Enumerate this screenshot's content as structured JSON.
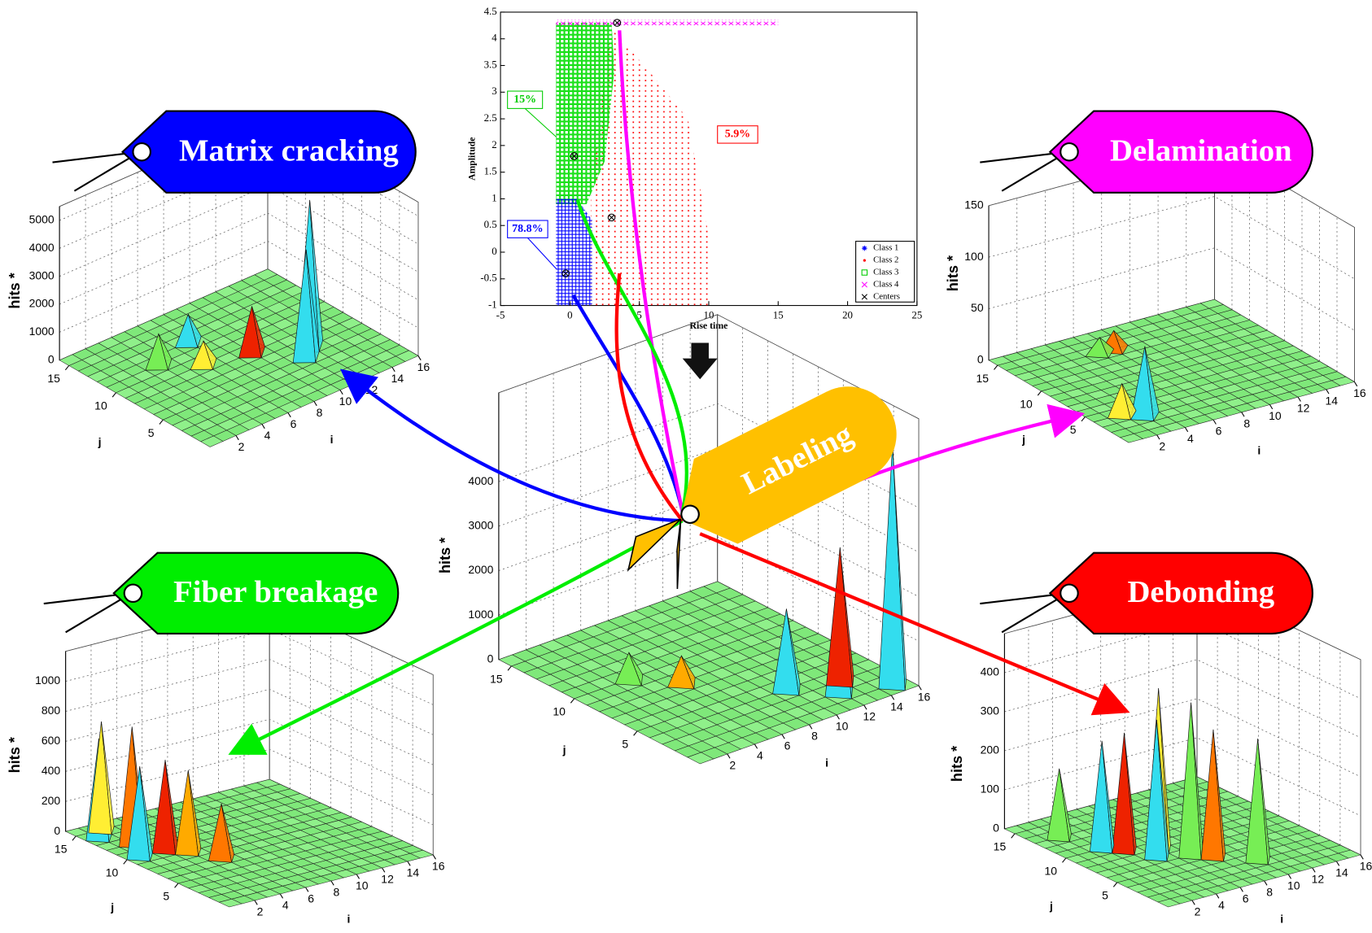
{
  "chart_data": [
    {
      "type": "scatter",
      "xlabel": "Rise time",
      "ylabel": "Amplitude",
      "xlim": [
        -5,
        25
      ],
      "xticks": [
        -5,
        0,
        5,
        10,
        15,
        20,
        25
      ],
      "ylim": [
        -1,
        4.5
      ],
      "yticks": [
        -1,
        -0.5,
        0,
        0.5,
        1,
        1.5,
        2,
        2.5,
        3,
        3.5,
        4,
        4.5
      ],
      "legend": [
        {
          "name": "Class 1",
          "color": "#0000ff",
          "marker": "*"
        },
        {
          "name": "Class 2",
          "color": "#ff0000",
          "marker": "."
        },
        {
          "name": "Class 3",
          "color": "#00cc00",
          "marker": "square"
        },
        {
          "name": "Class 4",
          "color": "#ff00ff",
          "marker": "x"
        },
        {
          "name": "Centers",
          "color": "#000000",
          "marker": "x"
        }
      ],
      "centers": {
        "x": [
          -0.3,
          3,
          0.3,
          3.4
        ],
        "y": [
          -0.4,
          0.65,
          1.8,
          4.3
        ]
      },
      "annotations": [
        {
          "text": "15%",
          "color": "#00cc00"
        },
        {
          "text": "5.9%",
          "color": "#ff0000"
        },
        {
          "text": "78.8%",
          "color": "#0000ff"
        }
      ]
    },
    {
      "type": "surface3d",
      "title": "Matrix cracking",
      "color": "#0000ff",
      "zlabel": "hits *",
      "xlabel": "i",
      "ylabel": "j",
      "zlim": [
        0,
        5500
      ],
      "zticks": [
        0,
        1000,
        2000,
        3000,
        4000,
        5000
      ],
      "xticks": [
        2,
        4,
        6,
        8,
        10,
        12,
        14,
        16
      ],
      "yticks": [
        5,
        10,
        15
      ]
    },
    {
      "type": "surface3d",
      "title": "Delamination",
      "color": "#ff00ff",
      "zlabel": "hits *",
      "xlabel": "i",
      "ylabel": "j",
      "zlim": [
        0,
        150
      ],
      "zticks": [
        0,
        50,
        100,
        150
      ],
      "xticks": [
        2,
        4,
        6,
        8,
        10,
        12,
        14,
        16
      ],
      "yticks": [
        5,
        10,
        15
      ]
    },
    {
      "type": "surface3d",
      "title": "Fiber breakage",
      "color": "#00ee00",
      "zlabel": "hits *",
      "xlabel": "i",
      "ylabel": "j",
      "zlim": [
        0,
        1200
      ],
      "zticks": [
        0,
        200,
        400,
        600,
        800,
        1000
      ],
      "xticks": [
        2,
        4,
        6,
        8,
        10,
        12,
        14,
        16
      ],
      "yticks": [
        5,
        10,
        15
      ]
    },
    {
      "type": "surface3d",
      "title": "Debonding",
      "color": "#ff0000",
      "zlabel": "hits *",
      "xlabel": "i",
      "ylabel": "j",
      "zlim": [
        0,
        500
      ],
      "zticks": [
        0,
        100,
        200,
        300,
        400
      ],
      "xticks": [
        2,
        4,
        6,
        8,
        10,
        12,
        14,
        16
      ],
      "yticks": [
        5,
        10,
        15
      ]
    },
    {
      "type": "surface3d",
      "title": "Labeling",
      "color": "#ffc000",
      "zlabel": "hits *",
      "xlabel": "i",
      "ylabel": "j",
      "zlim": [
        0,
        6000
      ],
      "zticks": [
        0,
        1000,
        2000,
        3000,
        4000
      ],
      "xticks": [
        2,
        4,
        6,
        8,
        10,
        12,
        14,
        16
      ],
      "yticks": [
        5,
        10,
        15
      ]
    }
  ]
}
